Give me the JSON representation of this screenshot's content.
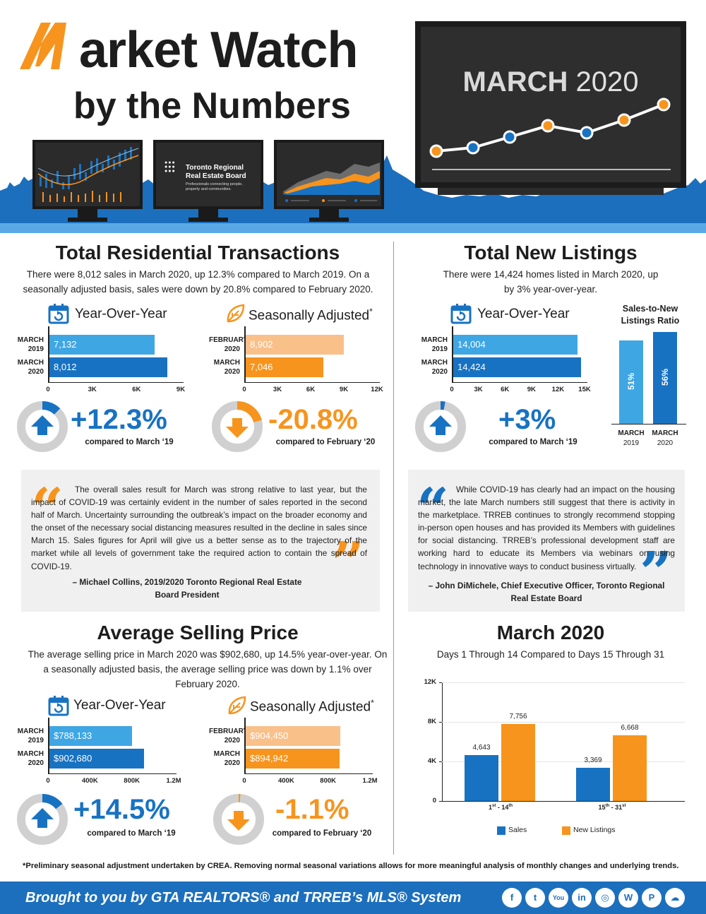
{
  "header": {
    "title_line1": "arket Watch",
    "title_line2": "by the Numbers",
    "tv_month": "MARCH",
    "tv_year": "2020",
    "monitor2_text1": "Toronto Regional",
    "monitor2_text2": "Real Estate Board",
    "monitor2_tag": "Professionals connecting people, property and communities."
  },
  "colors": {
    "blue": "#1872c2",
    "light_blue": "#3fa6e4",
    "orange": "#f7941d",
    "light_orange": "#f9c08a",
    "gray": "#d0d0d0"
  },
  "transactions": {
    "title": "Total Residential Transactions",
    "desc": "There were 8,012 sales in March 2020, up 12.3% compared to March 2019. On a seasonally adjusted basis, sales were down by 20.8% compared to February 2020.",
    "yoy": {
      "heading": "Year-Over-Year",
      "rows": [
        {
          "label1": "MARCH",
          "label2": "2019",
          "value": "7,132",
          "num": 7132
        },
        {
          "label1": "MARCH",
          "label2": "2020",
          "value": "8,012",
          "num": 8012
        }
      ],
      "ticks": [
        "0",
        "3K",
        "6K",
        "9K"
      ],
      "max": 9000,
      "pct": "+12.3%",
      "pct_fill": 0.123,
      "compare": "compared to March ‘19"
    },
    "sa": {
      "heading": "Seasonally Adjusted",
      "asterisk": "*",
      "rows": [
        {
          "label1": "FEBRUARY",
          "label2": "2020",
          "value": "8,902",
          "num": 8902
        },
        {
          "label1": "MARCH",
          "label2": "2020",
          "value": "7,046",
          "num": 7046
        }
      ],
      "ticks": [
        "0",
        "3K",
        "6K",
        "9K",
        "12K"
      ],
      "max": 12000,
      "pct": "-20.8%",
      "pct_fill": 0.208,
      "compare": "compared to February ‘20"
    }
  },
  "listings": {
    "title": "Total New Listings",
    "desc": "There were 14,424 homes listed in March 2020, up by 3% year-over-year.",
    "yoy": {
      "heading": "Year-Over-Year",
      "rows": [
        {
          "label1": "MARCH",
          "label2": "2019",
          "value": "14,004",
          "num": 14004
        },
        {
          "label1": "MARCH",
          "label2": "2020",
          "value": "14,424",
          "num": 14424
        }
      ],
      "ticks": [
        "0",
        "3K",
        "6K",
        "9K",
        "12K",
        "15K"
      ],
      "max": 15000,
      "pct": "+3%",
      "pct_fill": 0.03,
      "compare": "compared to March ‘19"
    },
    "snlr": {
      "heading": "Sales-to-New Listings Ratio",
      "bars": [
        {
          "value": "51%",
          "num": 51,
          "label1": "MARCH",
          "label2": "2019"
        },
        {
          "value": "56%",
          "num": 56,
          "label1": "MARCH",
          "label2": "2020"
        }
      ]
    }
  },
  "quote1": {
    "text": "The overall sales result for March was strong relative to last year, but the impact of COVID-19 was certainly evident in the number of sales reported in the second half of March. Uncertainty surrounding the outbreak’s impact on the broader economy and the onset of the necessary social distancing measures resulted in the decline in sales since March 15. Sales figures for April will give us a better sense as to the trajectory of the market while all levels of government take the required action to contain the spread of COVID-19.",
    "author": "– Michael Collins, 2019/2020 Toronto Regional Real Estate Board President"
  },
  "quote2": {
    "text": "While COVID-19 has clearly had an impact on the housing market, the late March numbers still suggest that there is activity in the marketplace. TRREB continues to strongly recommend stopping in-person open houses and has provided its Members with guidelines for social distancing. TRREB’s professional development staff are working hard to educate its Members via webinars on using technology in innovative ways to conduct business virtually.",
    "author": "– John DiMichele, Chief Executive Officer, Toronto Regional Real Estate Board"
  },
  "price": {
    "title": "Average Selling Price",
    "desc": "The average selling price in March 2020 was $902,680, up 14.5% year-over-year. On a seasonally adjusted basis, the average selling price was down by 1.1% over February 2020.",
    "yoy": {
      "heading": "Year-Over-Year",
      "rows": [
        {
          "label1": "MARCH",
          "label2": "2019",
          "value": "$788,133",
          "num": 788133
        },
        {
          "label1": "MARCH",
          "label2": "2020",
          "value": "$902,680",
          "num": 902680
        }
      ],
      "ticks": [
        "0",
        "400K",
        "800K",
        "1.2M"
      ],
      "max": 1200000,
      "pct": "+14.5%",
      "pct_fill": 0.145,
      "compare": "compared to March ‘19"
    },
    "sa": {
      "heading": "Seasonally Adjusted",
      "asterisk": "*",
      "rows": [
        {
          "label1": "FEBRUARY",
          "label2": "2020",
          "value": "$904,450",
          "num": 904450
        },
        {
          "label1": "MARCH",
          "label2": "2020",
          "value": "$894,942",
          "num": 894942
        }
      ],
      "ticks": [
        "0",
        "400K",
        "800K",
        "1.2M"
      ],
      "max": 1200000,
      "pct": "-1.1%",
      "pct_fill": 0.011,
      "compare": "compared to February ‘20"
    }
  },
  "chart_data": {
    "type": "bar",
    "title": "March 2020",
    "subtitle": "Days 1 Through 14 Compared to Days 15 Through 31",
    "categories": [
      "1st - 14th",
      "15th - 31st"
    ],
    "category_main": [
      "1",
      "15"
    ],
    "category_sup1": [
      "st",
      "th"
    ],
    "category_mid": [
      " - 14",
      " - 31"
    ],
    "category_sup2": [
      "th",
      "st"
    ],
    "series": [
      {
        "name": "Sales",
        "values": [
          4643,
          3369
        ],
        "labels": [
          "4,643",
          "3,369"
        ]
      },
      {
        "name": "New Listings",
        "values": [
          7756,
          6668
        ],
        "labels": [
          "7,756",
          "6,668"
        ]
      }
    ],
    "yticks": [
      "0",
      "4K",
      "8K",
      "12K"
    ],
    "ylim": [
      0,
      12000
    ],
    "legend": "bottom"
  },
  "footnote": "*Preliminary seasonal adjustment undertaken by CREA. Removing normal seasonal variations allows for more meaningful analysis of monthly changes and underlying trends.",
  "footer": {
    "text": "Brought to you by GTA REALTORS® and TRREB’s MLS® System",
    "social": [
      "facebook",
      "twitter",
      "youtube",
      "linkedin",
      "instagram",
      "wordpress",
      "pinterest",
      "soundcloud"
    ],
    "social_glyphs": [
      "f",
      "t",
      "You",
      "in",
      "◎",
      "W",
      "P",
      "☁"
    ]
  }
}
